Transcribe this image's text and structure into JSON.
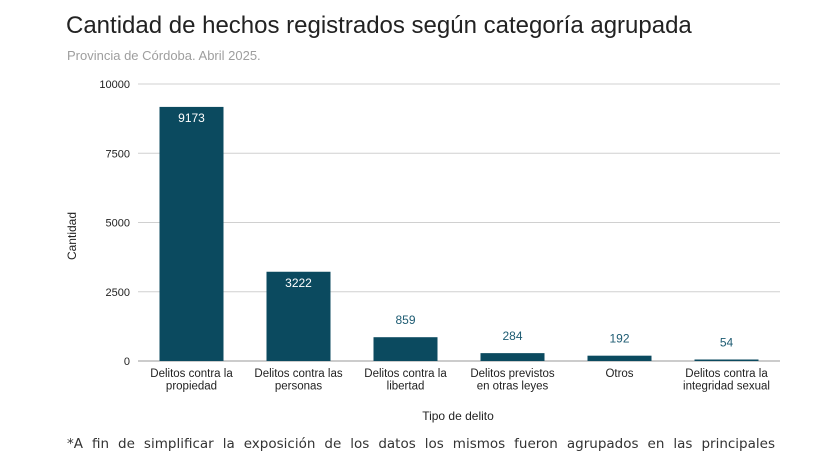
{
  "header": {
    "title": "Cantidad de hechos registrados según categoría agrupada",
    "subtitle": "Provincia de Córdoba. Abril 2025."
  },
  "footnote": "*A fin de simplificar la exposición de los datos los mismos fueron agrupados en las principales",
  "colors": {
    "bar": "#0b4a5f",
    "label_inside": "#ffffff",
    "label_outside": "#1d5b72",
    "grid": "#d0d0d0",
    "axis_text": "#222222"
  },
  "chart_data": {
    "type": "bar",
    "title": "Cantidad de hechos registrados según categoría agrupada",
    "subtitle": "Provincia de Córdoba. Abril 2025.",
    "xlabel": "Tipo de delito",
    "ylabel": "Cantidad",
    "ylim": [
      0,
      10000
    ],
    "yticks": [
      0,
      2500,
      5000,
      7500,
      10000
    ],
    "grid": true,
    "legend": "none",
    "categories": [
      [
        "Delitos contra la",
        "propiedad"
      ],
      [
        "Delitos contra las",
        "personas"
      ],
      [
        "Delitos contra la",
        "libertad"
      ],
      [
        "Delitos previstos",
        "en otras leyes"
      ],
      [
        "Otros"
      ],
      [
        "Delitos contra la",
        "integridad sexual"
      ]
    ],
    "values": [
      9173,
      3222,
      859,
      284,
      192,
      54
    ]
  }
}
